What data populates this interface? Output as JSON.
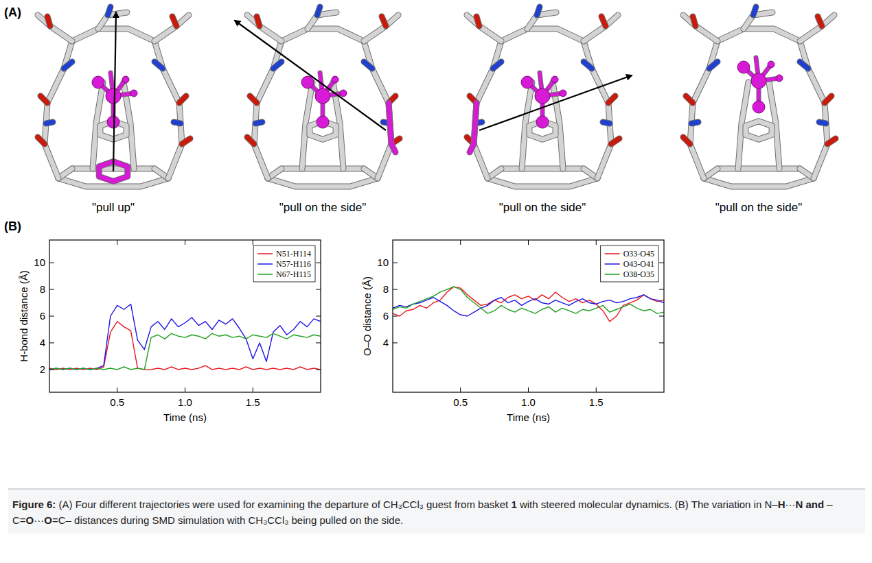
{
  "panel_a": {
    "label": "(A)",
    "trajectories": [
      "\"pull up\"",
      "\"pull on the side\"",
      "\"pull on the side\"",
      "\"pull on the side\""
    ]
  },
  "panel_b": {
    "label": "(B)"
  },
  "caption": {
    "segments": [
      {
        "text": "Figure 6:",
        "bold": true
      },
      {
        "text": " (A) Four different trajectories were used for examining the departure of CH₃CCl₃ guest from basket ",
        "bold": false
      },
      {
        "text": "1",
        "bold": true
      },
      {
        "text": " with steered molecular dynamics. (B) The variation in N–",
        "bold": false
      },
      {
        "text": "H",
        "bold": true
      },
      {
        "text": "···",
        "bold": false
      },
      {
        "text": "N and",
        "bold": true
      },
      {
        "text": " –C=",
        "bold": false
      },
      {
        "text": "O",
        "bold": true
      },
      {
        "text": "···",
        "bold": false
      },
      {
        "text": "O",
        "bold": true
      },
      {
        "text": "=C– distances during SMD simulation with CH₃CCl₃ being pulled on the side.",
        "bold": false
      }
    ]
  },
  "chart_data": [
    {
      "type": "line",
      "y_label": "H-bond distance (Å)",
      "x_label": "Time (ns)",
      "x": [
        0,
        0.05,
        0.1,
        0.15,
        0.2,
        0.25,
        0.3,
        0.35,
        0.4,
        0.45,
        0.5,
        0.55,
        0.6,
        0.65,
        0.7,
        0.75,
        0.8,
        0.85,
        0.9,
        0.95,
        1,
        1.05,
        1.1,
        1.15,
        1.2,
        1.25,
        1.3,
        1.35,
        1.4,
        1.45,
        1.5,
        1.55,
        1.6,
        1.65,
        1.7,
        1.75,
        1.8,
        1.85,
        1.9,
        1.95,
        2
      ],
      "xlim": [
        0,
        2
      ],
      "xticks": [
        0.5,
        {
          "value": 1,
          "label": "1.0"
        },
        1.5
      ],
      "ylim": [
        0.3,
        11.7
      ],
      "yticks": [
        2,
        4,
        6,
        8,
        10
      ],
      "legend": "upper right",
      "series": [
        {
          "name": "N51-H114",
          "color": "#e8141e",
          "values": [
            2.1,
            2.0,
            2.1,
            2.0,
            2.1,
            2.0,
            2.1,
            2.0,
            2.2,
            4.8,
            5.6,
            5.2,
            4.9,
            2.1,
            2.0,
            2.0,
            2.1,
            2.0,
            2.2,
            2.0,
            2.1,
            2.0,
            2.1,
            2.3,
            2.0,
            2.1,
            2.0,
            2.1,
            2.0,
            2.2,
            2.0,
            2.1,
            2.0,
            2.1,
            2.0,
            2.1,
            2.0,
            2.2,
            2.0,
            2.1,
            2.0
          ]
        },
        {
          "name": "N57-H116",
          "color": "#1e14e6",
          "values": [
            2.0,
            2.1,
            2.0,
            2.1,
            2.0,
            2.1,
            2.0,
            2.1,
            2.3,
            6.0,
            6.8,
            6.5,
            6.9,
            4.2,
            3.5,
            5.2,
            5.6,
            5.0,
            5.8,
            5.2,
            5.5,
            5.9,
            5.3,
            5.6,
            5.0,
            5.7,
            5.4,
            5.8,
            5.1,
            4.3,
            2.8,
            4.0,
            2.6,
            4.8,
            5.3,
            4.6,
            5.0,
            5.6,
            5.2,
            5.8,
            5.6
          ]
        },
        {
          "name": "N67-H115",
          "color": "#1ea01e",
          "values": [
            2.0,
            2.1,
            2.0,
            2.1,
            2.0,
            2.1,
            2.0,
            2.1,
            2.0,
            2.1,
            2.0,
            2.2,
            2.0,
            2.1,
            2.0,
            4.4,
            4.6,
            4.3,
            4.7,
            4.5,
            4.4,
            4.6,
            4.5,
            4.3,
            4.7,
            4.5,
            4.6,
            4.4,
            4.5,
            4.3,
            4.6,
            4.5,
            4.4,
            4.7,
            4.5,
            4.3,
            4.6,
            4.5,
            4.4,
            4.6,
            4.5
          ]
        }
      ]
    },
    {
      "type": "line",
      "y_label": "O–O distance (Å)",
      "x_label": "Time (ns)",
      "x": [
        0,
        0.05,
        0.1,
        0.15,
        0.2,
        0.25,
        0.3,
        0.35,
        0.4,
        0.45,
        0.5,
        0.55,
        0.6,
        0.65,
        0.7,
        0.75,
        0.8,
        0.85,
        0.9,
        0.95,
        1,
        1.05,
        1.1,
        1.15,
        1.2,
        1.25,
        1.3,
        1.35,
        1.4,
        1.45,
        1.5,
        1.55,
        1.6,
        1.65,
        1.7,
        1.75,
        1.8,
        1.85,
        1.9,
        1.95,
        2
      ],
      "xlim": [
        0,
        2
      ],
      "xticks": [
        0.5,
        {
          "value": 1,
          "label": "1.0"
        },
        1.5
      ],
      "ylim": [
        0.3,
        11.7
      ],
      "yticks": [
        4,
        6,
        8,
        10
      ],
      "legend": "upper right",
      "series": [
        {
          "name": "O33-O45",
          "color": "#e8141e",
          "values": [
            6.2,
            6.0,
            6.4,
            6.5,
            6.8,
            6.6,
            7.0,
            7.2,
            7.8,
            8.2,
            8.1,
            7.6,
            7.2,
            6.8,
            6.9,
            7.2,
            7.0,
            7.4,
            7.6,
            7.3,
            7.5,
            7.2,
            7.6,
            7.3,
            7.8,
            7.4,
            7.1,
            7.3,
            7.0,
            7.2,
            6.9,
            6.4,
            5.6,
            6.0,
            6.8,
            7.0,
            7.2,
            7.6,
            7.3,
            7.1,
            7.2
          ]
        },
        {
          "name": "O43-O41",
          "color": "#1e14e6",
          "values": [
            6.6,
            6.8,
            6.7,
            6.9,
            7.0,
            7.2,
            7.4,
            7.1,
            6.8,
            6.4,
            6.1,
            6.0,
            6.3,
            6.6,
            6.8,
            7.2,
            7.4,
            7.0,
            7.2,
            6.8,
            7.1,
            7.3,
            7.0,
            6.9,
            7.2,
            7.0,
            6.8,
            7.1,
            7.3,
            7.0,
            6.9,
            7.1,
            7.2,
            7.0,
            7.1,
            7.3,
            7.4,
            7.6,
            7.3,
            7.2,
            7.0
          ]
        },
        {
          "name": "O38-O35",
          "color": "#1ea01e",
          "values": [
            6.5,
            6.7,
            6.6,
            6.9,
            7.1,
            7.3,
            7.5,
            7.8,
            8.0,
            8.2,
            8.0,
            7.4,
            7.0,
            6.6,
            6.2,
            6.4,
            6.8,
            6.5,
            6.3,
            6.6,
            6.4,
            6.2,
            6.5,
            6.7,
            6.3,
            6.6,
            6.4,
            6.2,
            6.5,
            6.4,
            6.6,
            6.8,
            6.3,
            6.5,
            6.7,
            6.9,
            6.6,
            6.4,
            6.5,
            6.2,
            6.3
          ]
        }
      ]
    }
  ]
}
